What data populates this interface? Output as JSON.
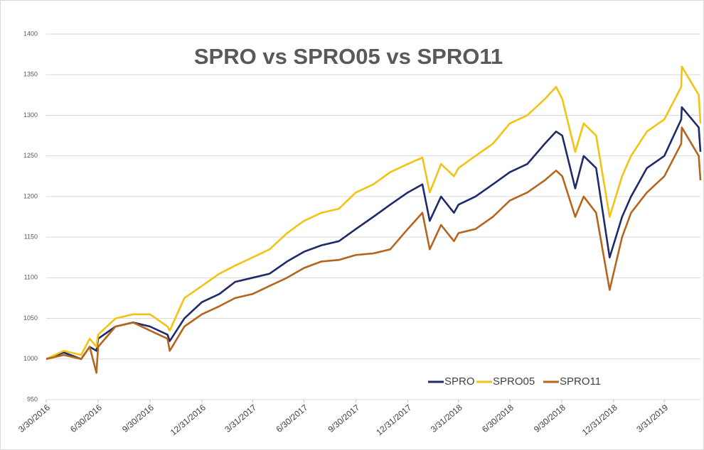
{
  "chart_data": {
    "type": "line",
    "title": "SPRO vs SPRO05 vs SPRO11",
    "x": [
      "3/30/2016",
      "4/30/2016",
      "5/31/2016",
      "6/15/2016",
      "6/27/2016",
      "6/30/2016",
      "7/31/2016",
      "8/31/2016",
      "9/30/2016",
      "10/31/2016",
      "11/4/2016",
      "11/30/2016",
      "12/31/2016",
      "1/31/2017",
      "2/28/2017",
      "3/31/2017",
      "4/30/2017",
      "5/31/2017",
      "6/30/2017",
      "7/31/2017",
      "8/31/2017",
      "9/30/2017",
      "10/31/2017",
      "11/30/2017",
      "12/31/2017",
      "1/26/2018",
      "2/8/2018",
      "2/28/2018",
      "3/23/2018",
      "3/31/2018",
      "4/30/2018",
      "5/31/2018",
      "6/30/2018",
      "7/31/2018",
      "8/31/2018",
      "9/20/2018",
      "10/1/2018",
      "10/24/2018",
      "11/8/2018",
      "11/30/2018",
      "12/24/2018",
      "1/15/2019",
      "1/31/2019",
      "2/28/2019",
      "3/31/2019",
      "4/30/2019",
      "5/1/2019",
      "5/31/2019",
      "6/3/2019"
    ],
    "series": [
      {
        "name": "SPRO",
        "color": "#1f2a6b",
        "values": [
          1000,
          1008,
          1000,
          1015,
          1010,
          1025,
          1040,
          1045,
          1040,
          1030,
          1022,
          1050,
          1070,
          1080,
          1095,
          1100,
          1105,
          1120,
          1132,
          1140,
          1145,
          1160,
          1175,
          1190,
          1205,
          1215,
          1170,
          1200,
          1180,
          1190,
          1200,
          1215,
          1230,
          1240,
          1265,
          1280,
          1275,
          1210,
          1250,
          1235,
          1125,
          1175,
          1200,
          1235,
          1250,
          1295,
          1310,
          1285,
          1255
        ]
      },
      {
        "name": "SPRO05",
        "color": "#f2c314",
        "values": [
          1000,
          1010,
          1005,
          1025,
          1015,
          1030,
          1050,
          1055,
          1055,
          1040,
          1035,
          1075,
          1090,
          1105,
          1115,
          1125,
          1135,
          1155,
          1170,
          1180,
          1185,
          1205,
          1215,
          1230,
          1240,
          1248,
          1205,
          1240,
          1225,
          1235,
          1250,
          1265,
          1290,
          1300,
          1320,
          1335,
          1320,
          1255,
          1290,
          1275,
          1175,
          1225,
          1250,
          1280,
          1295,
          1335,
          1360,
          1325,
          1290
        ]
      },
      {
        "name": "SPRO11",
        "color": "#b5651d",
        "values": [
          1000,
          1005,
          1000,
          1015,
          983,
          1015,
          1040,
          1045,
          1035,
          1025,
          1010,
          1040,
          1055,
          1065,
          1075,
          1080,
          1090,
          1100,
          1112,
          1120,
          1122,
          1128,
          1130,
          1135,
          1160,
          1180,
          1135,
          1165,
          1145,
          1155,
          1160,
          1175,
          1195,
          1205,
          1220,
          1232,
          1225,
          1175,
          1200,
          1180,
          1085,
          1150,
          1180,
          1205,
          1225,
          1265,
          1285,
          1250,
          1220
        ]
      }
    ],
    "xlim": [
      "3/30/2016",
      "6/3/2019"
    ],
    "xticks": [
      "3/30/2016",
      "6/30/2016",
      "9/30/2016",
      "12/31/2016",
      "3/31/2017",
      "6/30/2017",
      "9/30/2017",
      "12/31/2017",
      "3/31/2018",
      "6/30/2018",
      "9/30/2018",
      "12/31/2018",
      "3/31/2019"
    ],
    "ylim": [
      950,
      1400
    ],
    "yticks": [
      950,
      1000,
      1050,
      1100,
      1150,
      1200,
      1250,
      1300,
      1350,
      1400
    ],
    "grid": true,
    "legend": "bottom-right"
  }
}
